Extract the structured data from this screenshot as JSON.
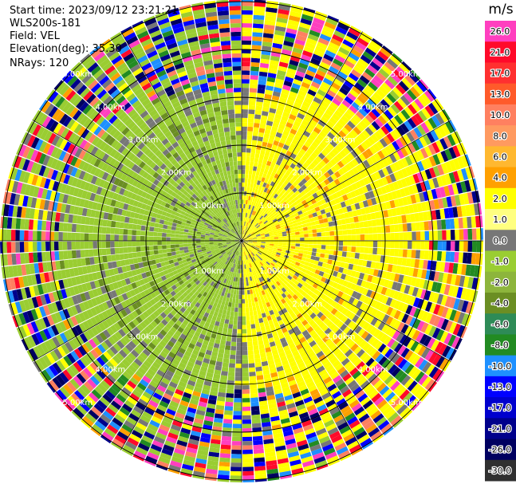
{
  "header": {
    "start_time": "Start time: 2023/09/12 23:21:21",
    "instrument": "WLS200s-181",
    "field": "Field: VEL",
    "elevation": "Elevation(deg): 35.30",
    "nrays": "NRays: 120"
  },
  "chart_data": {
    "type": "heatmap",
    "subtype": "radar-ppi",
    "field": "VEL",
    "units": "m/s",
    "range_rings_km": [
      1.0,
      2.0,
      3.0,
      4.0,
      5.0
    ],
    "range_ring_labels": [
      "1.00km",
      "2.00km",
      "3.00km",
      "4.00km",
      "5.00km"
    ],
    "nrays": 120,
    "colorbar": {
      "label": "m/s",
      "ticks": [
        "26.0",
        "21.0",
        "17.0",
        "13.0",
        "10.0",
        "8.0",
        "6.0",
        "4.0",
        "2.0",
        "1.0",
        "0.0",
        "-1.0",
        "-2.0",
        "-4.0",
        "-6.0",
        "-8.0",
        "-10.0",
        "-13.0",
        "-17.0",
        "-21.0",
        "-26.0",
        "-30.0"
      ],
      "colors": [
        "#ff3fbf",
        "#ff0a2a",
        "#ff3030",
        "#ff5a2a",
        "#ff8060",
        "#ff9a60",
        "#ffb830",
        "#ffa000",
        "#ffff00",
        "#ffff80",
        "#777777",
        "#9acd32",
        "#8db53c",
        "#6b8e23",
        "#2e8b57",
        "#228b22",
        "#1e90ff",
        "#0000ff",
        "#0000cd",
        "#00008b",
        "#000060",
        "#303030"
      ]
    },
    "pattern": {
      "negative_side": "west",
      "positive_side": "east",
      "note_colors": {
        "positive": "#ffff00",
        "negative": "#9acd32",
        "zero": "#777777"
      }
    }
  }
}
